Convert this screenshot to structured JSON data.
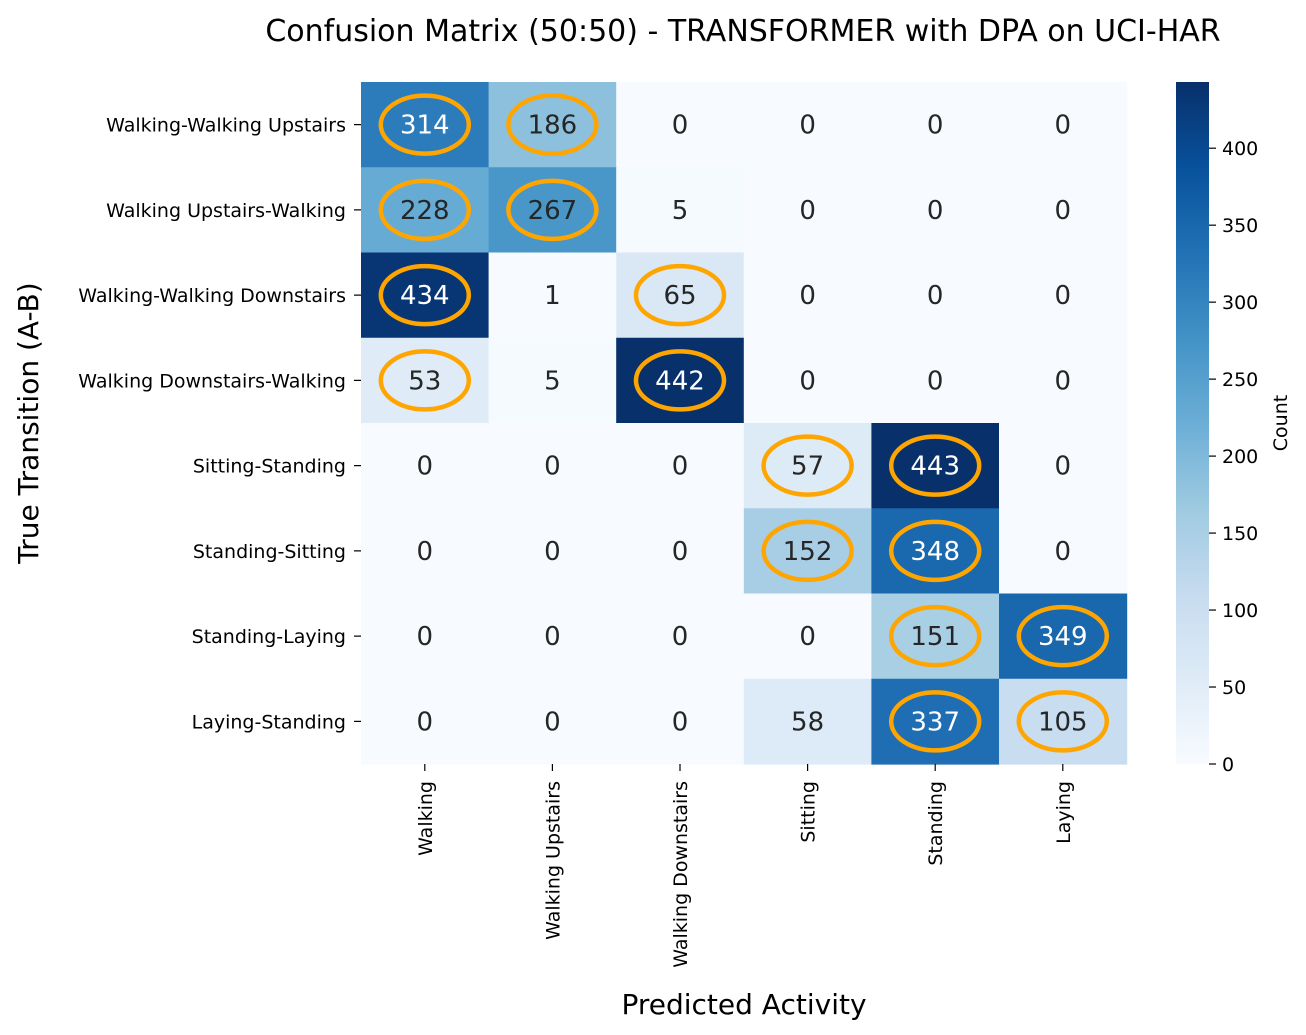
{
  "chart_data": {
    "type": "heatmap",
    "title": "Confusion Matrix (50:50) - TRANSFORMER with DPA on UCI-HAR",
    "xlabel": "Predicted Activity",
    "ylabel": "True Transition (A-B)",
    "colorbar_label": "Count",
    "x_categories": [
      "Walking",
      "Walking Upstairs",
      "Walking Downstairs",
      "Sitting",
      "Standing",
      "Laying"
    ],
    "y_categories": [
      "Walking-Walking Upstairs",
      "Walking Upstairs-Walking",
      "Walking-Walking Downstairs",
      "Walking Downstairs-Walking",
      "Sitting-Standing",
      "Standing-Sitting",
      "Standing-Laying",
      "Laying-Standing"
    ],
    "values": [
      [
        314,
        186,
        0,
        0,
        0,
        0
      ],
      [
        228,
        267,
        5,
        0,
        0,
        0
      ],
      [
        434,
        1,
        65,
        0,
        0,
        0
      ],
      [
        53,
        5,
        442,
        0,
        0,
        0
      ],
      [
        0,
        0,
        0,
        57,
        443,
        0
      ],
      [
        0,
        0,
        0,
        152,
        348,
        0
      ],
      [
        0,
        0,
        0,
        0,
        151,
        349
      ],
      [
        0,
        0,
        0,
        58,
        337,
        105
      ]
    ],
    "highlighted": [
      [
        true,
        true,
        false,
        false,
        false,
        false
      ],
      [
        true,
        true,
        false,
        false,
        false,
        false
      ],
      [
        true,
        false,
        true,
        false,
        false,
        false
      ],
      [
        true,
        false,
        true,
        false,
        false,
        false
      ],
      [
        false,
        false,
        false,
        true,
        true,
        false
      ],
      [
        false,
        false,
        false,
        true,
        true,
        false
      ],
      [
        false,
        false,
        false,
        false,
        true,
        true
      ],
      [
        false,
        false,
        false,
        false,
        true,
        true
      ]
    ],
    "vmin": 0,
    "vmax": 443,
    "colorbar_ticks": [
      0,
      50,
      100,
      150,
      200,
      250,
      300,
      350,
      400
    ],
    "colormap": "Blues",
    "highlight_color": "#ffa500"
  }
}
